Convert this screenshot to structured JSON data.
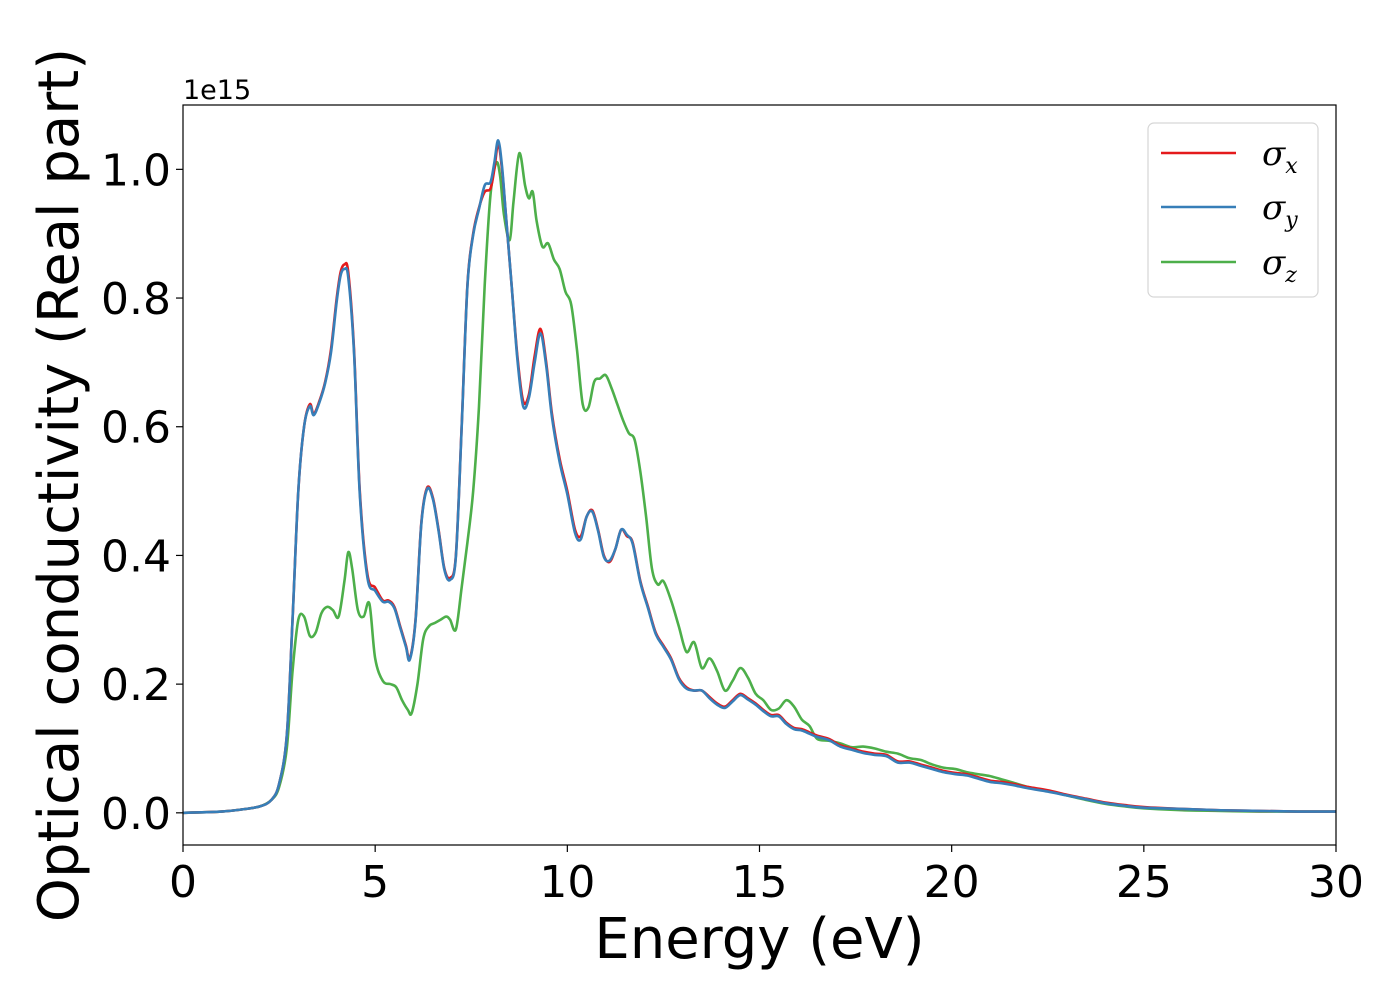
{
  "chart_data": {
    "type": "line",
    "xlabel": "Energy (eV)",
    "ylabel": "Optical conductivity (Real part)",
    "y_offset_label": "1e15",
    "xlim": [
      0,
      30
    ],
    "ylim": [
      -0.05,
      1.1
    ],
    "x_ticks": [
      0,
      5,
      10,
      15,
      20,
      25,
      30
    ],
    "x_tick_labels": [
      "0",
      "5",
      "10",
      "15",
      "20",
      "25",
      "30"
    ],
    "y_ticks": [
      0.0,
      0.2,
      0.4,
      0.6,
      0.8,
      1.0
    ],
    "y_tick_labels": [
      "0.0",
      "0.2",
      "0.4",
      "0.6",
      "0.8",
      "1.0"
    ],
    "grid": false,
    "legend_position": "top-right",
    "series": [
      {
        "name": "σx",
        "symbol": "σ",
        "subscript": "x",
        "color": "#e41a1c",
        "x": [
          0,
          1,
          1.5,
          2.0,
          2.3,
          2.5,
          2.7,
          2.85,
          3.0,
          3.15,
          3.3,
          3.4,
          3.55,
          3.7,
          3.85,
          4.0,
          4.1,
          4.2,
          4.3,
          4.45,
          4.6,
          4.8,
          5.0,
          5.2,
          5.35,
          5.5,
          5.65,
          5.8,
          5.9,
          6.05,
          6.2,
          6.35,
          6.5,
          6.65,
          6.8,
          6.95,
          7.1,
          7.25,
          7.4,
          7.55,
          7.7,
          7.85,
          8.0,
          8.1,
          8.2,
          8.3,
          8.4,
          8.55,
          8.7,
          8.85,
          9.0,
          9.15,
          9.3,
          9.45,
          9.6,
          9.8,
          10.0,
          10.2,
          10.35,
          10.5,
          10.65,
          10.8,
          10.95,
          11.1,
          11.25,
          11.4,
          11.55,
          11.7,
          11.9,
          12.1,
          12.3,
          12.5,
          12.7,
          12.9,
          13.1,
          13.3,
          13.5,
          13.7,
          13.9,
          14.1,
          14.3,
          14.5,
          14.7,
          14.9,
          15.1,
          15.3,
          15.5,
          15.7,
          15.9,
          16.1,
          16.3,
          16.5,
          16.8,
          17.1,
          17.4,
          17.7,
          18.0,
          18.3,
          18.6,
          18.9,
          19.2,
          19.5,
          19.8,
          20.1,
          20.4,
          20.7,
          21.0,
          21.3,
          21.6,
          22.0,
          22.5,
          23.0,
          23.5,
          24.0,
          24.5,
          25.0,
          26.0,
          27.0,
          28.0,
          29.0,
          30.0
        ],
        "y": [
          0.0,
          0.002,
          0.005,
          0.01,
          0.02,
          0.045,
          0.12,
          0.3,
          0.5,
          0.6,
          0.635,
          0.62,
          0.64,
          0.67,
          0.72,
          0.8,
          0.84,
          0.852,
          0.84,
          0.72,
          0.5,
          0.37,
          0.35,
          0.33,
          0.33,
          0.32,
          0.29,
          0.26,
          0.24,
          0.3,
          0.45,
          0.505,
          0.49,
          0.44,
          0.38,
          0.365,
          0.4,
          0.6,
          0.82,
          0.9,
          0.94,
          0.965,
          0.97,
          1.0,
          1.04,
          1.0,
          0.93,
          0.82,
          0.71,
          0.64,
          0.65,
          0.71,
          0.752,
          0.7,
          0.62,
          0.55,
          0.5,
          0.44,
          0.43,
          0.46,
          0.47,
          0.44,
          0.4,
          0.39,
          0.41,
          0.44,
          0.43,
          0.42,
          0.36,
          0.32,
          0.28,
          0.26,
          0.24,
          0.21,
          0.195,
          0.19,
          0.19,
          0.18,
          0.17,
          0.165,
          0.175,
          0.185,
          0.178,
          0.17,
          0.16,
          0.152,
          0.152,
          0.14,
          0.132,
          0.13,
          0.125,
          0.12,
          0.115,
          0.105,
          0.1,
          0.095,
          0.092,
          0.09,
          0.08,
          0.08,
          0.075,
          0.07,
          0.065,
          0.062,
          0.06,
          0.055,
          0.05,
          0.048,
          0.045,
          0.04,
          0.035,
          0.028,
          0.022,
          0.016,
          0.012,
          0.009,
          0.006,
          0.004,
          0.003,
          0.002,
          0.002
        ]
      },
      {
        "name": "σy",
        "symbol": "σ",
        "subscript": "y",
        "color": "#377eb8",
        "x": [
          0,
          1,
          1.5,
          2.0,
          2.3,
          2.5,
          2.7,
          2.85,
          3.0,
          3.15,
          3.3,
          3.4,
          3.55,
          3.7,
          3.85,
          4.0,
          4.1,
          4.2,
          4.3,
          4.45,
          4.6,
          4.8,
          5.0,
          5.2,
          5.35,
          5.5,
          5.65,
          5.8,
          5.9,
          6.05,
          6.2,
          6.35,
          6.5,
          6.65,
          6.8,
          6.95,
          7.1,
          7.25,
          7.4,
          7.55,
          7.7,
          7.85,
          8.0,
          8.1,
          8.2,
          8.3,
          8.4,
          8.55,
          8.7,
          8.85,
          9.0,
          9.15,
          9.3,
          9.45,
          9.6,
          9.8,
          10.0,
          10.2,
          10.35,
          10.5,
          10.65,
          10.8,
          10.95,
          11.1,
          11.25,
          11.4,
          11.55,
          11.7,
          11.9,
          12.1,
          12.3,
          12.5,
          12.7,
          12.9,
          13.1,
          13.3,
          13.5,
          13.7,
          13.9,
          14.1,
          14.3,
          14.5,
          14.7,
          14.9,
          15.1,
          15.3,
          15.5,
          15.7,
          15.9,
          16.1,
          16.3,
          16.5,
          16.8,
          17.1,
          17.4,
          17.7,
          18.0,
          18.3,
          18.6,
          18.9,
          19.2,
          19.5,
          19.8,
          20.1,
          20.4,
          20.7,
          21.0,
          21.3,
          21.6,
          22.0,
          22.5,
          23.0,
          23.5,
          24.0,
          24.5,
          25.0,
          26.0,
          27.0,
          28.0,
          29.0,
          30.0
        ],
        "y": [
          0.0,
          0.002,
          0.005,
          0.01,
          0.02,
          0.045,
          0.12,
          0.3,
          0.5,
          0.6,
          0.632,
          0.618,
          0.638,
          0.668,
          0.715,
          0.795,
          0.835,
          0.845,
          0.832,
          0.715,
          0.495,
          0.365,
          0.345,
          0.328,
          0.328,
          0.318,
          0.288,
          0.258,
          0.238,
          0.298,
          0.448,
          0.503,
          0.488,
          0.438,
          0.378,
          0.362,
          0.398,
          0.598,
          0.818,
          0.898,
          0.938,
          0.975,
          0.98,
          1.01,
          1.045,
          1.005,
          0.93,
          0.82,
          0.705,
          0.632,
          0.645,
          0.7,
          0.745,
          0.695,
          0.615,
          0.545,
          0.495,
          0.435,
          0.425,
          0.46,
          0.468,
          0.438,
          0.398,
          0.392,
          0.41,
          0.44,
          0.432,
          0.418,
          0.358,
          0.318,
          0.278,
          0.258,
          0.238,
          0.208,
          0.193,
          0.19,
          0.19,
          0.178,
          0.168,
          0.163,
          0.173,
          0.183,
          0.176,
          0.168,
          0.158,
          0.15,
          0.15,
          0.138,
          0.13,
          0.128,
          0.123,
          0.118,
          0.113,
          0.103,
          0.098,
          0.093,
          0.09,
          0.088,
          0.078,
          0.078,
          0.073,
          0.068,
          0.063,
          0.06,
          0.058,
          0.053,
          0.048,
          0.046,
          0.043,
          0.038,
          0.033,
          0.027,
          0.021,
          0.015,
          0.011,
          0.008,
          0.006,
          0.004,
          0.003,
          0.002,
          0.002
        ]
      },
      {
        "name": "σz",
        "symbol": "σ",
        "subscript": "z",
        "color": "#4daf4a",
        "x": [
          0,
          1,
          1.5,
          2.0,
          2.3,
          2.5,
          2.7,
          2.85,
          3.0,
          3.15,
          3.3,
          3.45,
          3.6,
          3.75,
          3.9,
          4.05,
          4.2,
          4.3,
          4.4,
          4.55,
          4.7,
          4.85,
          5.0,
          5.2,
          5.4,
          5.55,
          5.7,
          5.85,
          5.95,
          6.1,
          6.25,
          6.4,
          6.55,
          6.7,
          6.85,
          6.95,
          7.1,
          7.25,
          7.4,
          7.55,
          7.7,
          7.85,
          8.0,
          8.15,
          8.25,
          8.35,
          8.5,
          8.6,
          8.75,
          8.9,
          9.0,
          9.1,
          9.2,
          9.35,
          9.5,
          9.65,
          9.8,
          9.95,
          10.1,
          10.25,
          10.4,
          10.55,
          10.7,
          10.85,
          11.0,
          11.15,
          11.3,
          11.45,
          11.6,
          11.75,
          11.9,
          12.05,
          12.2,
          12.35,
          12.5,
          12.7,
          12.9,
          13.1,
          13.3,
          13.5,
          13.7,
          13.9,
          14.1,
          14.3,
          14.5,
          14.7,
          14.9,
          15.1,
          15.3,
          15.5,
          15.7,
          15.9,
          16.1,
          16.3,
          16.5,
          16.8,
          17.1,
          17.4,
          17.7,
          18.0,
          18.3,
          18.6,
          18.9,
          19.2,
          19.5,
          19.8,
          20.1,
          20.4,
          20.7,
          21.0,
          21.3,
          21.6,
          22.0,
          22.5,
          23.0,
          23.5,
          24.0,
          24.5,
          25.0,
          26.0,
          27.0,
          28.0,
          29.0,
          30.0
        ],
        "y": [
          0.0,
          0.002,
          0.005,
          0.01,
          0.02,
          0.04,
          0.1,
          0.22,
          0.3,
          0.305,
          0.275,
          0.28,
          0.31,
          0.32,
          0.315,
          0.305,
          0.36,
          0.405,
          0.38,
          0.315,
          0.305,
          0.325,
          0.24,
          0.205,
          0.2,
          0.195,
          0.175,
          0.16,
          0.155,
          0.2,
          0.27,
          0.29,
          0.295,
          0.3,
          0.305,
          0.3,
          0.285,
          0.35,
          0.42,
          0.5,
          0.63,
          0.82,
          0.96,
          1.01,
          0.99,
          0.93,
          0.89,
          0.95,
          1.025,
          0.975,
          0.955,
          0.965,
          0.92,
          0.88,
          0.885,
          0.86,
          0.845,
          0.81,
          0.79,
          0.72,
          0.635,
          0.63,
          0.67,
          0.675,
          0.68,
          0.66,
          0.635,
          0.61,
          0.59,
          0.58,
          0.53,
          0.46,
          0.38,
          0.355,
          0.36,
          0.33,
          0.29,
          0.25,
          0.265,
          0.225,
          0.24,
          0.22,
          0.19,
          0.205,
          0.225,
          0.21,
          0.185,
          0.175,
          0.16,
          0.162,
          0.175,
          0.165,
          0.145,
          0.135,
          0.115,
          0.112,
          0.108,
          0.102,
          0.103,
          0.1,
          0.095,
          0.092,
          0.085,
          0.082,
          0.075,
          0.07,
          0.068,
          0.063,
          0.06,
          0.057,
          0.052,
          0.047,
          0.04,
          0.034,
          0.027,
          0.02,
          0.014,
          0.01,
          0.007,
          0.004,
          0.003,
          0.002,
          0.002,
          0.002
        ]
      }
    ]
  }
}
